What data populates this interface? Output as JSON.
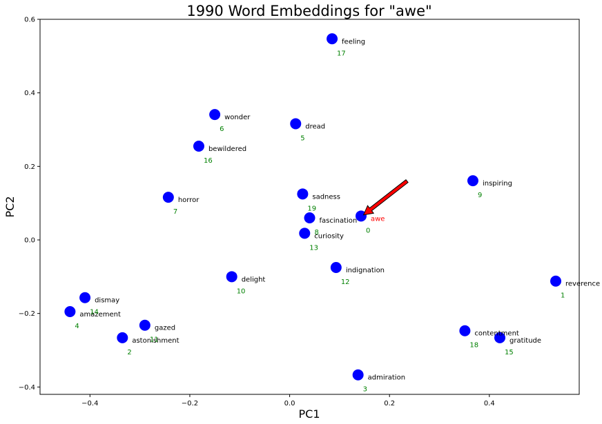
{
  "chart_data": {
    "type": "scatter",
    "title": "1990 Word Embeddings for \"awe\"",
    "xlabel": "PC1",
    "ylabel": "PC2",
    "xlim": [
      -0.5,
      0.58
    ],
    "ylim": [
      -0.42,
      0.6
    ],
    "xticks": [
      -0.4,
      -0.2,
      0.0,
      0.2,
      0.4
    ],
    "xtick_labels": [
      "−0.4",
      "−0.2",
      "0.0",
      "0.2",
      "0.4"
    ],
    "yticks": [
      -0.4,
      -0.2,
      0.0,
      0.2,
      0.4,
      0.6
    ],
    "ytick_labels": [
      "−0.4",
      "−0.2",
      "0.0",
      "0.2",
      "0.4",
      "0.6"
    ],
    "grid": false,
    "point_color": "#0000ff",
    "index_color": "#008000",
    "target_color": "#ff0000",
    "arrow_color": "#ff0000",
    "arrow_from": [
      0.235,
      0.16
    ],
    "arrow_to": [
      0.148,
      0.068
    ],
    "points": [
      {
        "word": "awe",
        "index": "0",
        "x": 0.143,
        "y": 0.065,
        "target": true
      },
      {
        "word": "reverence",
        "index": "1",
        "x": 0.533,
        "y": -0.112
      },
      {
        "word": "astonishment",
        "index": "2",
        "x": -0.335,
        "y": -0.266
      },
      {
        "word": "admiration",
        "index": "3",
        "x": 0.137,
        "y": -0.367
      },
      {
        "word": "amazement",
        "index": "4",
        "x": -0.44,
        "y": -0.195
      },
      {
        "word": "dread",
        "index": "5",
        "x": 0.012,
        "y": 0.316
      },
      {
        "word": "wonder",
        "index": "6",
        "x": -0.15,
        "y": 0.341
      },
      {
        "word": "horror",
        "index": "7",
        "x": -0.243,
        "y": 0.116
      },
      {
        "word": "fascination",
        "index": "8",
        "x": 0.04,
        "y": 0.06
      },
      {
        "word": "inspiring",
        "index": "9",
        "x": 0.367,
        "y": 0.161
      },
      {
        "word": "delight",
        "index": "10",
        "x": -0.116,
        "y": -0.1
      },
      {
        "word": "gazed",
        "index": "11",
        "x": -0.29,
        "y": -0.232
      },
      {
        "word": "indignation",
        "index": "12",
        "x": 0.093,
        "y": -0.075
      },
      {
        "word": "curiosity",
        "index": "13",
        "x": 0.03,
        "y": 0.018
      },
      {
        "word": "dismay",
        "index": "14",
        "x": -0.41,
        "y": -0.157
      },
      {
        "word": "gratitude",
        "index": "15",
        "x": 0.421,
        "y": -0.266
      },
      {
        "word": "bewildered",
        "index": "16",
        "x": -0.182,
        "y": 0.255
      },
      {
        "word": "feeling",
        "index": "17",
        "x": 0.085,
        "y": 0.547
      },
      {
        "word": "contentment",
        "index": "18",
        "x": 0.351,
        "y": -0.247
      },
      {
        "word": "sadness",
        "index": "19",
        "x": 0.026,
        "y": 0.125
      }
    ]
  }
}
